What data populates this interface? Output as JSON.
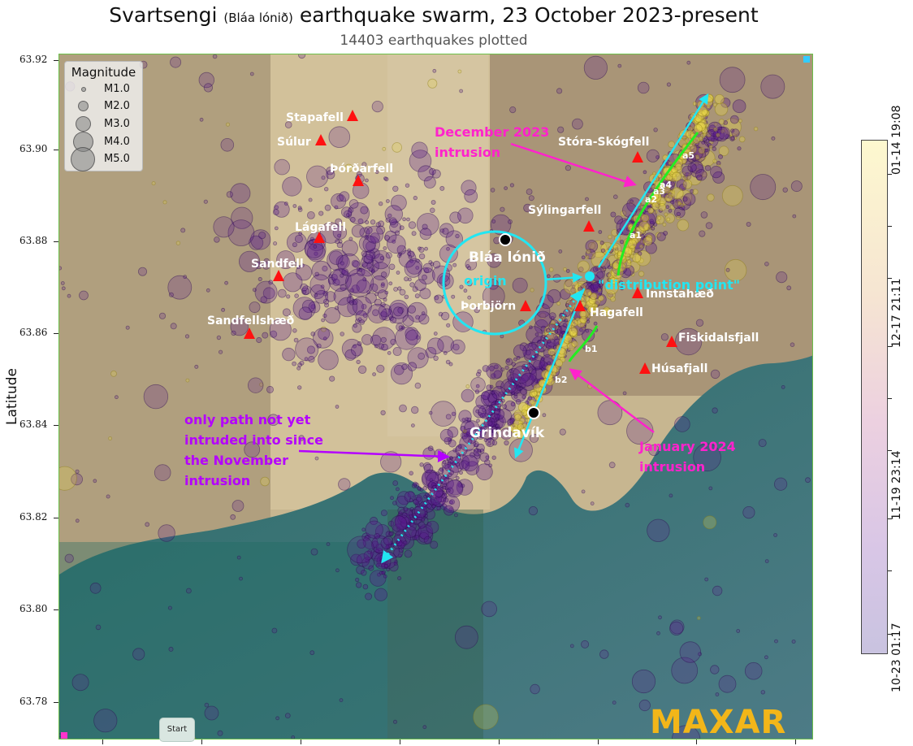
{
  "title_main": "Svartsengi",
  "title_small": "(Bláa lónið)",
  "title_rest": "earthquake swarm, 23 October 2023-present",
  "subtitle": "14403 earthquakes plotted",
  "y_axis_label": "Latitude",
  "y_ticks": [
    "63.92",
    "63.90",
    "63.88",
    "63.86",
    "63.84",
    "63.82",
    "63.80",
    "63.78"
  ],
  "legend": {
    "title": "Magnitude",
    "items": [
      "M1.0",
      "M2.0",
      "M3.0",
      "M4.0",
      "M5.0"
    ]
  },
  "colorbar": {
    "labels": [
      "01-14 19:08",
      "12-17 21:11",
      "11-19 23:14",
      "10-23 01:17"
    ],
    "colors": [
      "#fdf8cf",
      "#f6e5d2",
      "#ecd0e0",
      "#d8c6e6",
      "#c9c3e0"
    ]
  },
  "places": {
    "stapafell": "Stapafell",
    "sulur": "Súlur",
    "thordarfell": "Þórðarfell",
    "lagafell": "Lágafell",
    "sandfell": "Sandfell",
    "sandfellshaed": "Sandfellshæð",
    "storaskogfell": "Stóra-Skógfell",
    "sylingarfell": "Sýlingarfell",
    "innstahaed": "Innstahæð",
    "hagafell": "Hagafell",
    "fiskidalsfjall": "Fiskidalsfjall",
    "husafjall": "Húsafjall",
    "thorbjorn": "Þorbjörn",
    "blaa_lonid": "Bláa lónið",
    "grindavik": "Grindavík"
  },
  "annotations": {
    "december": [
      "December 2023",
      "intrusion"
    ],
    "january": [
      "January 2024",
      "intrusion"
    ],
    "november": [
      "only path not yet",
      "intruded into since",
      "the November",
      "intrusion"
    ],
    "origin": "origin",
    "distribution_point": "\"distribution point\"",
    "segments": [
      "a1",
      "a2",
      "a3",
      "a4",
      "a5",
      "b1",
      "b2"
    ]
  },
  "controls": {
    "start": "Start"
  },
  "watermark": "MAXAR",
  "colors": {
    "quake_old": "#5a1a8c",
    "quake_new": "#e8d64a",
    "annotation_magenta": "#ff22cc",
    "annotation_purple": "#b400ff",
    "annotation_cyan": "#22e6f2",
    "intrusion_green": "#22ee22",
    "summit_red": "#ff1111"
  }
}
